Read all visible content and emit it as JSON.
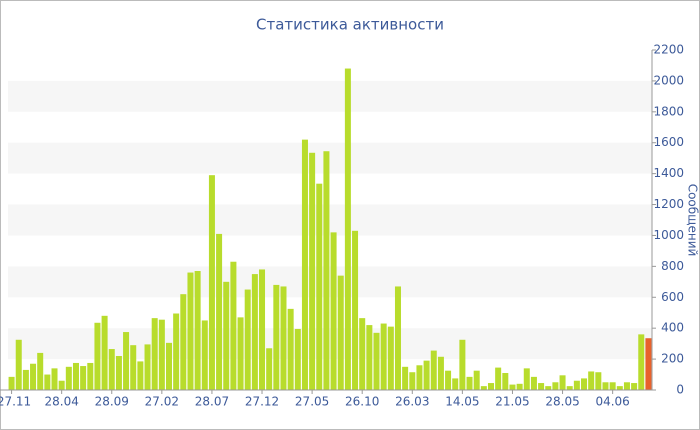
{
  "chart_data": {
    "type": "bar",
    "title": "Статистика активности",
    "y_label": "Сообщений",
    "categories": [
      "27.11",
      null,
      null,
      null,
      null,
      null,
      null,
      "28.04",
      null,
      null,
      null,
      null,
      null,
      null,
      "28.09",
      null,
      null,
      null,
      null,
      null,
      null,
      "27.02",
      null,
      null,
      null,
      null,
      null,
      null,
      "28.07",
      null,
      null,
      null,
      null,
      null,
      null,
      "27.12",
      null,
      null,
      null,
      null,
      null,
      null,
      "27.05",
      null,
      null,
      null,
      null,
      null,
      null,
      "26.10",
      null,
      null,
      null,
      null,
      null,
      null,
      "26.03",
      null,
      null,
      null,
      null,
      null,
      null,
      "14.05",
      null,
      null,
      null,
      null,
      null,
      null,
      "21.05",
      null,
      null,
      null,
      null,
      null,
      null,
      "28.05",
      null,
      null,
      null,
      null,
      null,
      null,
      "04.06",
      null,
      null,
      null,
      null,
      null
    ],
    "values": [
      85,
      325,
      130,
      170,
      240,
      100,
      140,
      60,
      150,
      175,
      155,
      175,
      435,
      480,
      265,
      220,
      375,
      290,
      185,
      295,
      465,
      455,
      305,
      495,
      620,
      760,
      770,
      450,
      1390,
      1010,
      700,
      830,
      470,
      650,
      750,
      780,
      270,
      680,
      670,
      525,
      395,
      1620,
      1535,
      1335,
      1545,
      1020,
      740,
      2080,
      1030,
      465,
      420,
      370,
      430,
      410,
      670,
      150,
      115,
      160,
      190,
      255,
      215,
      125,
      75,
      325,
      85,
      125,
      25,
      45,
      145,
      110,
      35,
      40,
      140,
      85,
      45,
      25,
      50,
      95,
      25,
      60,
      75,
      120,
      115,
      50,
      50,
      25,
      50,
      45,
      360,
      335
    ],
    "color": "#b8dc2c",
    "last_color": "#e8622c",
    "ylim": [
      0,
      2200
    ],
    "yticks": [
      0,
      200,
      400,
      600,
      800,
      1000,
      1200,
      1400,
      1600,
      1800,
      2000,
      2200
    ],
    "grid": "bands",
    "y_axis_side": "right"
  }
}
